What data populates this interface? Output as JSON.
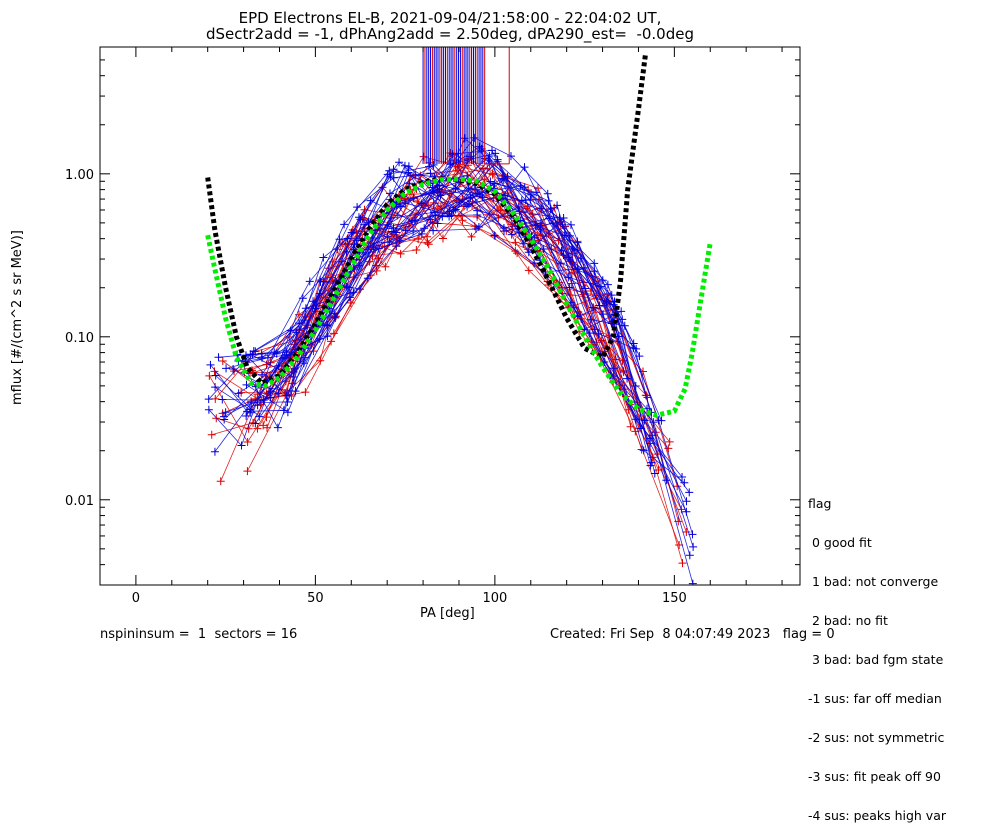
{
  "chart_data": {
    "type": "line",
    "title": "EPD Electrons EL-B, 2021-09-04/21:58:00 - 22:04:02 UT,",
    "subtitle": "dSectr2add = -1, dPhAng2add = 2.50deg, dPA290_est=  -0.0deg",
    "xlabel": "PA [deg]",
    "ylabel": "mflux [#/(cm^2 s sr MeV)]",
    "xlim": [
      -10,
      185
    ],
    "ylim": [
      0.003,
      6.0
    ],
    "yscale": "log",
    "x_ticks": [
      0,
      50,
      100,
      150
    ],
    "x_tick_labels": [
      "0",
      "50",
      "100",
      "150"
    ],
    "y_ticks": [
      0.01,
      0.1,
      1.0
    ],
    "y_tick_labels": [
      "0.01",
      "0.10",
      "1.00"
    ],
    "grid": false,
    "series": [
      {
        "color": "#000000",
        "style": "dashed",
        "x": [
          20,
          22,
          25,
          28,
          31,
          35,
          40,
          45,
          50,
          55,
          60,
          65,
          70,
          75,
          80,
          85,
          90,
          95,
          100,
          105,
          110,
          115,
          120,
          125,
          130,
          133,
          135,
          137,
          140,
          142
        ],
        "y": [
          0.95,
          0.45,
          0.2,
          0.1,
          0.065,
          0.052,
          0.058,
          0.08,
          0.12,
          0.19,
          0.3,
          0.46,
          0.65,
          0.8,
          0.89,
          0.93,
          0.92,
          0.87,
          0.75,
          0.55,
          0.36,
          0.22,
          0.13,
          0.085,
          0.075,
          0.1,
          0.22,
          0.8,
          2.5,
          5.5
        ]
      },
      {
        "color": "#00ee00",
        "style": "dashed",
        "x": [
          20,
          22,
          25,
          28,
          32,
          36,
          40,
          45,
          50,
          55,
          60,
          65,
          70,
          75,
          80,
          85,
          90,
          95,
          100,
          105,
          110,
          115,
          120,
          125,
          130,
          135,
          140,
          145,
          150,
          153,
          155,
          157,
          160
        ],
        "y": [
          0.42,
          0.26,
          0.13,
          0.075,
          0.052,
          0.05,
          0.056,
          0.075,
          0.11,
          0.17,
          0.27,
          0.42,
          0.6,
          0.76,
          0.86,
          0.92,
          0.93,
          0.9,
          0.78,
          0.58,
          0.4,
          0.26,
          0.16,
          0.1,
          0.065,
          0.045,
          0.036,
          0.033,
          0.035,
          0.048,
          0.08,
          0.15,
          0.38
        ]
      }
    ],
    "scatter_series": [
      {
        "color": "#0000dd",
        "marker": "+",
        "note_shape": "many sector traces rising from ~0.02-0.08 at 20-40 deg to ~1.0 near 90 deg, falling to ~0.005-0.05 at 130-160 deg"
      },
      {
        "color": "#dd0000",
        "marker": "+",
        "note_shape": "many sector traces with similar shape, slightly lower on the wings"
      }
    ]
  },
  "legend": {
    "title": "flag",
    "entries": [
      " 0 good fit",
      " 1 bad: not converge",
      " 2 bad: no fit",
      " 3 bad: bad fgm state",
      "-1 sus: far off median",
      "-2 sus: not symmetric",
      "-3 sus: fit peak off 90",
      "-4 sus: peaks high var"
    ]
  },
  "footer": {
    "left": "nspininsum =  1  sectors = 16",
    "right": "Created: Fri Sep  8 04:07:49 2023   flag = 0"
  },
  "colors": {
    "blue": "#0000dd",
    "red": "#dd0000",
    "green": "#00ee00",
    "black": "#000000"
  }
}
